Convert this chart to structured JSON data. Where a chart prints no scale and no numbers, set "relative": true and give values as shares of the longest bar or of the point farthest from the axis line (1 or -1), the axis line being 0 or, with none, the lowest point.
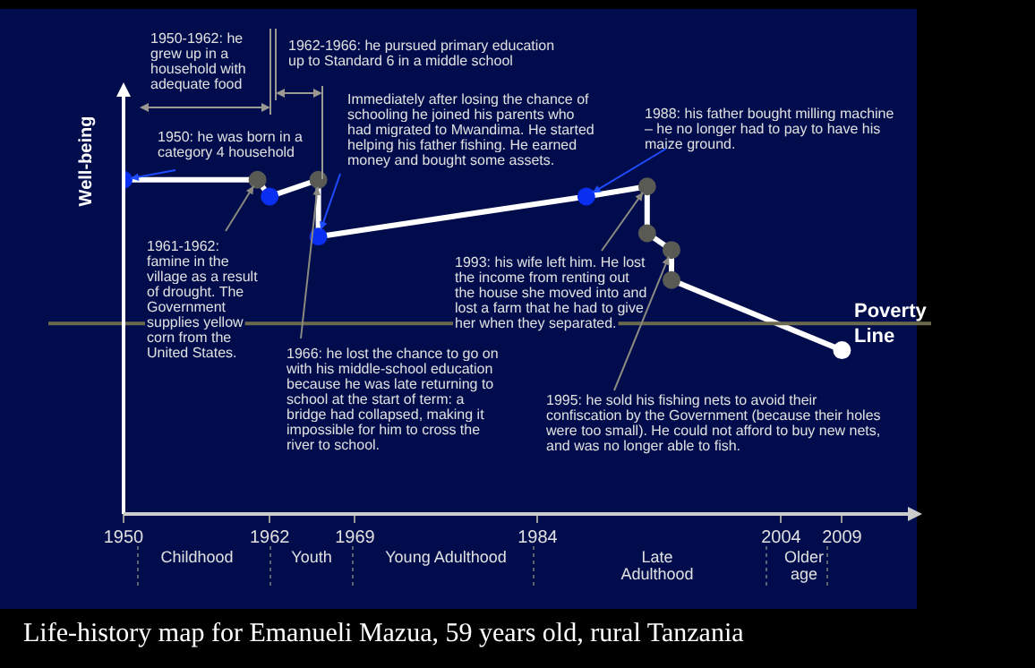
{
  "chart_data": {
    "type": "line",
    "title": "Life-history map for Emanueli Mazua, 59 years old, rural Tanzania",
    "ylabel": "Well-being",
    "relative": true,
    "legend": false,
    "grid": false,
    "marker": "circle",
    "line_style": "solid",
    "xlim": [
      1950,
      2015
    ],
    "xticks": [
      1950,
      1962,
      1969,
      1984,
      2004,
      2009
    ],
    "series": [
      {
        "color": "#ffffff",
        "x": [
          1950,
          1961,
          1962,
          1966,
          1966,
          1988,
          1993,
          1993,
          1995,
          1995,
          2009
        ],
        "values": [
          1.0,
          1.0,
          0.95,
          1.0,
          0.83,
          0.95,
          0.98,
          0.84,
          0.79,
          0.7,
          0.49
        ],
        "colors": [
          "#0a2ff0",
          "#5a5a55",
          "#0a2ff0",
          "#5a5a55",
          "#0a2ff0",
          "#0a2ff0",
          "#5a5a55",
          "#5a5a55",
          "#5a5a55",
          "#5a5a55",
          "#ffffff"
        ]
      }
    ],
    "ref_lines": [
      {
        "axis": "y",
        "value": 0.57,
        "label": "Poverty Line",
        "color": "#6b6a4e"
      }
    ],
    "annotations": [
      {
        "text": "1950: he was born in a category 4 household",
        "x": 1950,
        "y": 1.0
      },
      {
        "text": "1961-1962: famine in the village as a result of drought. The Government supplies yellow corn from the United States.",
        "x": 1961,
        "y": 1.0
      },
      {
        "text": "1966: he lost the chance to go on with his middle-school education because he was late returning to school at the start of term: a bridge had collapsed, making it impossible for him to cross the river to school.",
        "x": 1966,
        "y": 1.0
      },
      {
        "text": "Immediately after losing the chance of schooling he joined his parents who had migrated to Mwandima. He started helping his father fishing. He earned money and bought some assets.",
        "x": 1966,
        "y": 0.83
      },
      {
        "text": "1988: his father bought milling machine – he no longer had to pay to have his maize ground.",
        "x": 1988,
        "y": 0.95
      },
      {
        "text": "1993: his wife left him. He lost the income from renting out the house she moved into and lost a farm that he had to give her when they separated.",
        "x": 1993,
        "y": 0.98
      },
      {
        "text": "1995: he sold his fishing nets to avoid their confiscation by the Government (because their holes were too small). He could not afford to buy new nets, and was no longer able to fish.",
        "x": 1995,
        "y": 0.79
      },
      "1950-1962: he grew up in a household with adequate food",
      "1962-1966: he pursued primary education up to Standard 6 in a middle school",
      "Childhood",
      "Youth",
      "Young Adulthood",
      "Late Adulthood",
      "Older age"
    ]
  }
}
